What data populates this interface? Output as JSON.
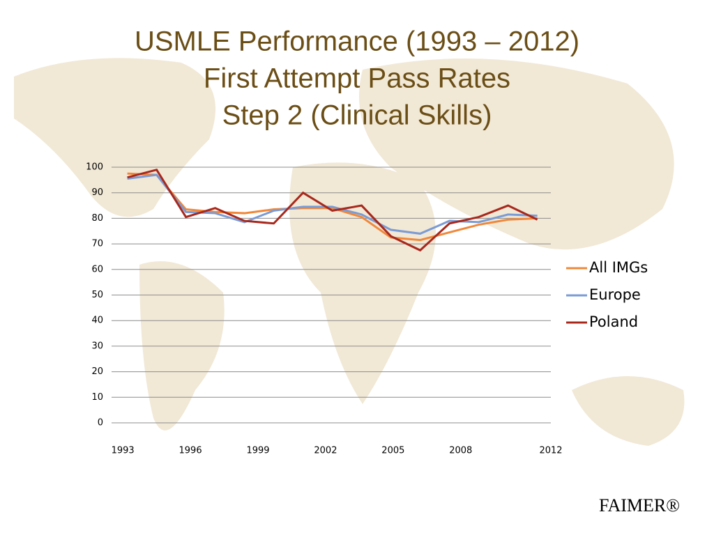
{
  "chart_data": {
    "type": "line",
    "title": [
      "USMLE Performance (1993 – 2012)",
      "First Attempt Pass Rates",
      "Step 2 (Clinical Skills)"
    ],
    "x": [
      1993.2,
      1994.5,
      1995.8,
      1997.1,
      1998.4,
      1999.7,
      2001.0,
      2002.3,
      2003.6,
      2004.9,
      2006.2,
      2007.5,
      2008.8,
      2010.1,
      2011.4
    ],
    "series": [
      {
        "name": "All IMGs",
        "color": "#f0883a",
        "values": [
          97.5,
          97,
          83.5,
          82.5,
          82,
          83.5,
          84,
          84,
          80.5,
          72.5,
          71.5,
          74.5,
          77.5,
          79.5,
          80
        ]
      },
      {
        "name": "Europe",
        "color": "#7a9bd4",
        "values": [
          95.5,
          97,
          82.5,
          82,
          78.5,
          83,
          84.5,
          84.5,
          81.5,
          75.5,
          74,
          79,
          78.5,
          81.5,
          81
        ]
      },
      {
        "name": "Poland",
        "color": "#a8281c",
        "values": [
          96,
          99,
          80.5,
          84,
          79,
          78,
          90,
          83,
          85,
          73,
          67.5,
          78,
          80.5,
          85,
          79.5
        ]
      }
    ],
    "xlim": [
      1992.5,
      2012
    ],
    "xticks": [
      1993,
      1996,
      1999,
      2002,
      2005,
      2008,
      2012
    ],
    "ylim": [
      0,
      100
    ],
    "yticks": [
      0,
      10,
      20,
      30,
      40,
      50,
      60,
      70,
      80,
      90,
      100
    ],
    "grid": true,
    "legend": "right"
  },
  "footer": "FAIMER®"
}
